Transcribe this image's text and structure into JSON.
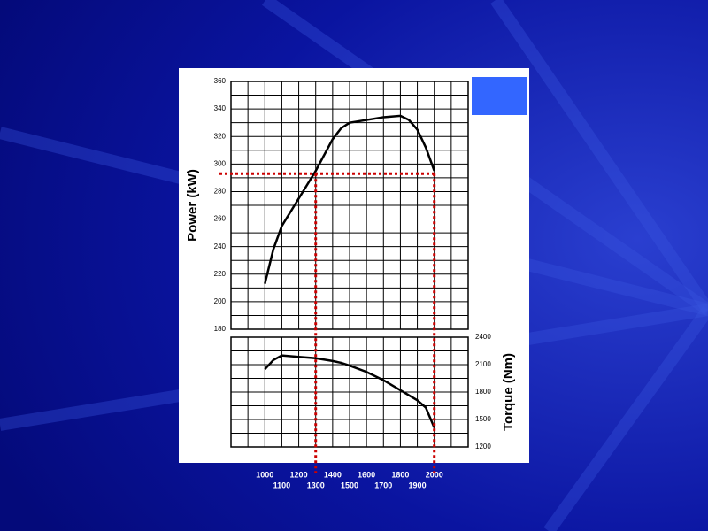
{
  "chart_data": [
    {
      "type": "line",
      "y_label": "Power (kW)",
      "x": [
        1000,
        1050,
        1100,
        1200,
        1300,
        1400,
        1450,
        1500,
        1600,
        1700,
        1800,
        1850,
        1900,
        1950,
        2000
      ],
      "values": [
        213,
        238,
        255,
        275,
        295,
        318,
        326,
        330,
        332,
        334,
        335,
        332,
        325,
        312,
        295
      ],
      "color": "#000000",
      "xlim": [
        800,
        2200
      ],
      "xgrid": [
        800,
        900,
        1000,
        1100,
        1200,
        1300,
        1400,
        1500,
        1600,
        1700,
        1800,
        1900,
        2000,
        2100,
        2200
      ],
      "ylim": [
        180,
        360
      ],
      "yticks": [
        180,
        200,
        220,
        240,
        260,
        280,
        300,
        320,
        340,
        360
      ],
      "grid": true,
      "vlines": [
        1300,
        2000
      ],
      "hline": 293,
      "guide_color": "#cc0000"
    },
    {
      "type": "line",
      "y_label": "Torque (Nm)",
      "x": [
        1000,
        1050,
        1100,
        1200,
        1300,
        1400,
        1450,
        1500,
        1600,
        1700,
        1800,
        1900,
        1950,
        2000
      ],
      "values": [
        2050,
        2150,
        2200,
        2185,
        2170,
        2140,
        2120,
        2090,
        2020,
        1930,
        1820,
        1710,
        1630,
        1410
      ],
      "color": "#000000",
      "xlim": [
        800,
        2200
      ],
      "xgrid": [
        800,
        900,
        1000,
        1100,
        1200,
        1300,
        1400,
        1500,
        1600,
        1700,
        1800,
        1900,
        2000,
        2100,
        2200
      ],
      "xticks": [
        1000,
        1100,
        1200,
        1300,
        1400,
        1500,
        1600,
        1700,
        1800,
        1900,
        2000
      ],
      "ylim": [
        1200,
        2400
      ],
      "yticks": [
        1200,
        1500,
        1800,
        2100,
        2400
      ],
      "grid": true
    }
  ]
}
